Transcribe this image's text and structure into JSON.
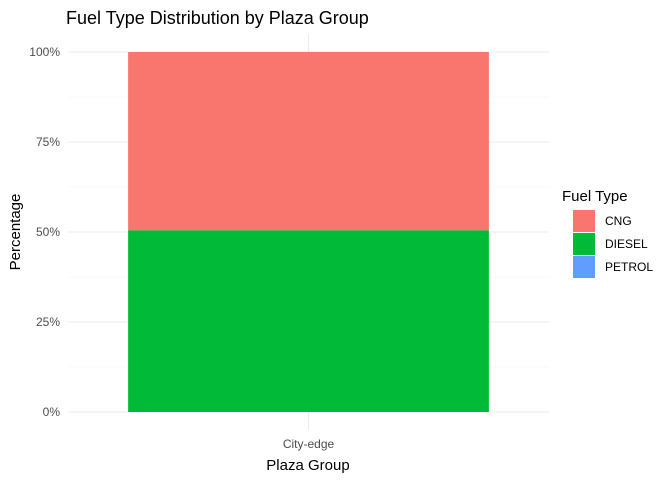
{
  "chart_data": {
    "type": "bar",
    "stacked": true,
    "title": "Fuel Type Distribution by Plaza Group",
    "xlabel": "Plaza Group",
    "ylabel": "Percentage",
    "categories": [
      "City-edge"
    ],
    "ylim": [
      0,
      1
    ],
    "yticks": [
      0,
      0.25,
      0.5,
      0.75,
      1
    ],
    "ytick_labels": [
      "0%",
      "25%",
      "50%",
      "75%",
      "100%"
    ],
    "grid": true,
    "legend": {
      "title": "Fuel Type",
      "placement": "right"
    },
    "series": [
      {
        "name": "CNG",
        "color": "#F8766D",
        "values": [
          0.495
        ]
      },
      {
        "name": "DIESEL",
        "color": "#00BA38",
        "values": [
          0.505
        ]
      },
      {
        "name": "PETROL",
        "color": "#619CFF",
        "values": [
          0
        ]
      }
    ]
  }
}
